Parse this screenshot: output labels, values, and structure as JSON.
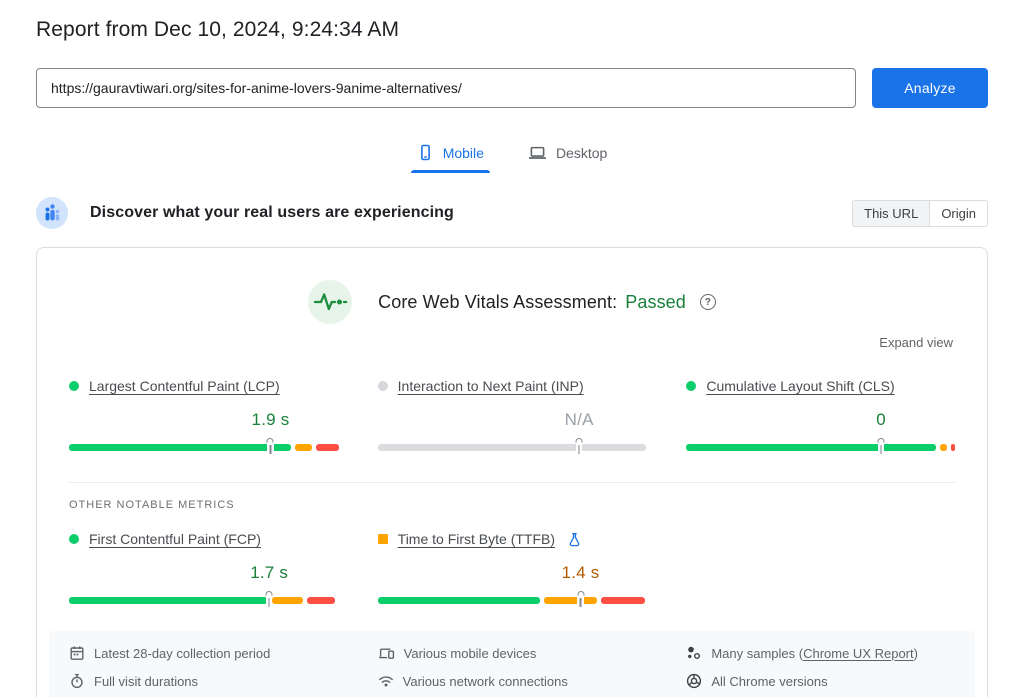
{
  "header": {
    "title": "Report from Dec 10, 2024, 9:24:34 AM"
  },
  "url_bar": {
    "value": "https://gauravtiwari.org/sites-for-anime-lovers-9anime-alternatives/",
    "analyze_label": "Analyze"
  },
  "tabs": [
    {
      "label": "Mobile",
      "active": true
    },
    {
      "label": "Desktop",
      "active": false
    }
  ],
  "field_section": {
    "heading": "Discover what your real users are experiencing",
    "scope_toggle": {
      "this_url": "This URL",
      "origin": "Origin",
      "selected": "This URL"
    },
    "assessment_prefix": "Core Web Vitals Assessment:",
    "assessment_result": "Passed",
    "help_glyph": "?",
    "expand_label": "Expand view",
    "other_metrics_label": "OTHER NOTABLE METRICS"
  },
  "metrics": {
    "lcp": {
      "name": "Largest Contentful Paint (LCP)",
      "value": "1.9 s",
      "value_color": "#188038",
      "indicator_color": "#0cce6b",
      "indicator_shape": "circle",
      "p75_marker_pct": 75,
      "segments": [
        {
          "type": "good",
          "pct": 82.5
        },
        {
          "type": "ni",
          "pct": 6.5
        },
        {
          "type": "poor",
          "pct": 8.5
        }
      ]
    },
    "inp": {
      "name": "Interaction to Next Paint (INP)",
      "value": "N/A",
      "value_color": "#9aa0a6",
      "indicator_color": "#d5d7db",
      "indicator_shape": "circle",
      "p75_marker_pct": 75,
      "segments": [
        {
          "type": "na",
          "pct": 100
        }
      ]
    },
    "cls": {
      "name": "Cumulative Layout Shift (CLS)",
      "value": "0",
      "value_color": "#188038",
      "indicator_color": "#0cce6b",
      "indicator_shape": "circle",
      "p75_marker_pct": 72.5,
      "segments": [
        {
          "type": "good",
          "pct": 93
        },
        {
          "type": "ni",
          "pct": 2.5
        },
        {
          "type": "poor",
          "pct": 1.5
        }
      ]
    },
    "fcp": {
      "name": "First Contentful Paint (FCP)",
      "value": "1.7 s",
      "value_color": "#188038",
      "indicator_color": "#0cce6b",
      "indicator_shape": "circle",
      "p75_marker_pct": 74.5,
      "segments": [
        {
          "type": "good",
          "pct": 74
        },
        {
          "type": "ni",
          "pct": 11.5
        },
        {
          "type": "poor",
          "pct": 10.5
        }
      ]
    },
    "ttfb": {
      "name": "Time to First Byte (TTFB)",
      "value": "1.4 s",
      "value_color": "#b35900",
      "indicator_color": "#ffa400",
      "indicator_shape": "square",
      "p75_marker_pct": 75.5,
      "experimental": true,
      "segments": [
        {
          "type": "good",
          "pct": 60.5
        },
        {
          "type": "ni",
          "pct": 19.5
        },
        {
          "type": "poor",
          "pct": 16.5
        }
      ]
    }
  },
  "colors": {
    "bar": {
      "good": "#0cce6b",
      "ni": "#ffa400",
      "poor": "#ff4e42",
      "na": "#dadce0"
    },
    "accent_blue": "#1a73e8",
    "passed_green": "#188038"
  },
  "footer": {
    "cells": [
      {
        "icon": "calendar",
        "label": "Latest 28-day collection period"
      },
      {
        "icon": "stopwatch",
        "label": "Full visit durations"
      },
      {
        "icon": "devices",
        "label": "Various mobile devices"
      },
      {
        "icon": "wifi",
        "label": "Various network connections"
      },
      {
        "icon": "samples",
        "label_prefix": "Many samples (",
        "link": "Chrome UX Report",
        "label_suffix": ")"
      },
      {
        "icon": "chrome",
        "label": "All Chrome versions"
      }
    ]
  }
}
